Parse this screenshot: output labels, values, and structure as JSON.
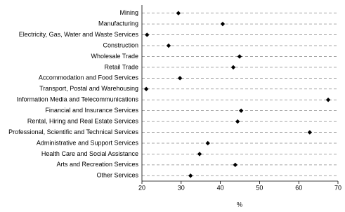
{
  "chart_data": {
    "type": "dot",
    "categories": [
      "Mining",
      "Manufacturing",
      "Electricity, Gas, Water and Waste Services",
      "Construction",
      "Wholesale Trade",
      "Retail Trade",
      "Accommodation and Food Services",
      "Transport, Postal and Warehousing",
      "Information Media and Telecommunications",
      "Financial and Insurance Services",
      "Rental, Hiring and Real Estate Services",
      "Professional, Scientific and Technical Services",
      "Administrative and Support Services",
      "Health Care and Social Assistance",
      "Arts and Recreation Services",
      "Other Services"
    ],
    "values": [
      29.3,
      40.6,
      21.3,
      26.8,
      44.9,
      43.3,
      29.7,
      21.1,
      67.5,
      45.3,
      44.4,
      62.8,
      36.8,
      34.7,
      43.8,
      32.4
    ],
    "color": "#000000",
    "x_label": "%",
    "xlim": [
      20,
      70
    ],
    "xticks": [
      20,
      30,
      40,
      50,
      60,
      70
    ]
  }
}
